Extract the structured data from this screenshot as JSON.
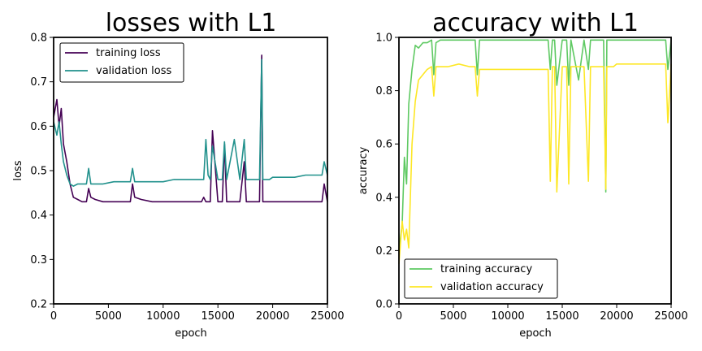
{
  "chart_data": [
    {
      "type": "line",
      "title": "losses with L1",
      "xlabel": "epoch",
      "ylabel": "loss",
      "xlim": [
        0,
        25000
      ],
      "ylim": [
        0.2,
        0.8
      ],
      "xticks": [
        0,
        5000,
        10000,
        15000,
        20000,
        25000
      ],
      "yticks": [
        0.2,
        0.3,
        0.4,
        0.5,
        0.6,
        0.7,
        0.8
      ],
      "ytick_decimals": 1,
      "grid": false,
      "legend_position": "upper-left",
      "series": [
        {
          "name": "training loss",
          "color": "#440154",
          "x": [
            0,
            300,
            500,
            700,
            900,
            1200,
            1500,
            1800,
            2200,
            2600,
            3000,
            3200,
            3400,
            3800,
            4500,
            5500,
            6500,
            7000,
            7200,
            7400,
            8000,
            9000,
            10000,
            11000,
            12000,
            13000,
            13500,
            13700,
            13900,
            14100,
            14300,
            14500,
            15000,
            15400,
            15600,
            15800,
            16500,
            17000,
            17400,
            17600,
            18000,
            18500,
            18800,
            19000,
            19100,
            19300,
            19700,
            20000,
            21000,
            22000,
            23000,
            24000,
            24500,
            24700,
            25000
          ],
          "y": [
            0.62,
            0.66,
            0.6,
            0.64,
            0.56,
            0.52,
            0.47,
            0.44,
            0.435,
            0.43,
            0.43,
            0.46,
            0.44,
            0.435,
            0.43,
            0.43,
            0.43,
            0.43,
            0.47,
            0.44,
            0.435,
            0.43,
            0.43,
            0.43,
            0.43,
            0.43,
            0.43,
            0.44,
            0.43,
            0.43,
            0.43,
            0.59,
            0.43,
            0.43,
            0.56,
            0.43,
            0.43,
            0.43,
            0.52,
            0.43,
            0.43,
            0.43,
            0.43,
            0.76,
            0.43,
            0.43,
            0.43,
            0.43,
            0.43,
            0.43,
            0.43,
            0.43,
            0.43,
            0.47,
            0.43
          ]
        },
        {
          "name": "validation loss",
          "color": "#21918c",
          "x": [
            0,
            300,
            500,
            700,
            900,
            1200,
            1500,
            1800,
            2200,
            2600,
            3000,
            3200,
            3400,
            3800,
            4500,
            5500,
            6500,
            7000,
            7200,
            7400,
            8000,
            9000,
            10000,
            11000,
            12000,
            13000,
            13500,
            13700,
            13900,
            14100,
            14300,
            14500,
            15000,
            15400,
            15600,
            15800,
            16500,
            17000,
            17400,
            17600,
            18000,
            18500,
            18800,
            19000,
            19100,
            19300,
            19700,
            20000,
            21000,
            22000,
            23000,
            24000,
            24500,
            24700,
            25000
          ],
          "y": [
            0.61,
            0.58,
            0.61,
            0.56,
            0.52,
            0.49,
            0.47,
            0.465,
            0.47,
            0.47,
            0.47,
            0.505,
            0.47,
            0.47,
            0.47,
            0.475,
            0.475,
            0.475,
            0.505,
            0.475,
            0.475,
            0.475,
            0.475,
            0.48,
            0.48,
            0.48,
            0.48,
            0.48,
            0.57,
            0.49,
            0.48,
            0.555,
            0.48,
            0.48,
            0.565,
            0.48,
            0.57,
            0.48,
            0.57,
            0.48,
            0.48,
            0.48,
            0.48,
            0.75,
            0.48,
            0.48,
            0.48,
            0.485,
            0.485,
            0.485,
            0.49,
            0.49,
            0.49,
            0.52,
            0.49
          ]
        }
      ]
    },
    {
      "type": "line",
      "title": "accuracy with L1",
      "xlabel": "epoch",
      "ylabel": "accuracy",
      "xlim": [
        0,
        25000
      ],
      "ylim": [
        0.0,
        1.0
      ],
      "xticks": [
        0,
        5000,
        10000,
        15000,
        20000,
        25000
      ],
      "yticks": [
        0.0,
        0.2,
        0.4,
        0.6,
        0.8,
        1.0
      ],
      "ytick_decimals": 1,
      "grid": false,
      "legend_position": "lower-left",
      "series": [
        {
          "name": "training accuracy",
          "color": "#5ec962",
          "x": [
            0,
            300,
            500,
            700,
            900,
            1200,
            1500,
            1800,
            2200,
            2600,
            3000,
            3200,
            3400,
            3800,
            4500,
            5500,
            6500,
            7000,
            7200,
            7400,
            8000,
            9000,
            10000,
            11000,
            12000,
            13000,
            13500,
            13700,
            13900,
            14100,
            14300,
            14500,
            15000,
            15400,
            15600,
            15800,
            16500,
            17000,
            17400,
            17600,
            18000,
            18500,
            18800,
            19000,
            19100,
            19300,
            19700,
            20000,
            21000,
            22000,
            23000,
            24000,
            24500,
            24700,
            25000
          ],
          "y": [
            0.2,
            0.3,
            0.55,
            0.45,
            0.75,
            0.88,
            0.97,
            0.96,
            0.98,
            0.98,
            0.99,
            0.86,
            0.98,
            0.99,
            0.99,
            0.99,
            0.99,
            0.99,
            0.86,
            0.99,
            0.99,
            0.99,
            0.99,
            0.99,
            0.99,
            0.99,
            0.99,
            0.99,
            0.88,
            0.99,
            0.99,
            0.82,
            0.99,
            0.99,
            0.82,
            0.99,
            0.84,
            0.99,
            0.88,
            0.99,
            0.99,
            0.99,
            0.99,
            0.42,
            0.99,
            0.99,
            0.99,
            0.99,
            0.99,
            0.99,
            0.99,
            0.99,
            0.99,
            0.88,
            0.99
          ]
        },
        {
          "name": "validation accuracy",
          "color": "#fde725",
          "x": [
            0,
            300,
            500,
            700,
            900,
            1200,
            1500,
            1800,
            2200,
            2600,
            3000,
            3200,
            3400,
            3800,
            4500,
            5500,
            6500,
            7000,
            7200,
            7400,
            8000,
            9000,
            10000,
            11000,
            12000,
            13000,
            13500,
            13700,
            13900,
            14100,
            14300,
            14500,
            15000,
            15400,
            15600,
            15800,
            16500,
            17000,
            17400,
            17600,
            18000,
            18500,
            18800,
            19000,
            19100,
            19300,
            19700,
            20000,
            21000,
            22000,
            23000,
            24000,
            24500,
            24700,
            25000
          ],
          "y": [
            0.15,
            0.31,
            0.24,
            0.28,
            0.21,
            0.6,
            0.76,
            0.84,
            0.86,
            0.88,
            0.89,
            0.78,
            0.89,
            0.89,
            0.89,
            0.9,
            0.89,
            0.89,
            0.78,
            0.88,
            0.88,
            0.88,
            0.88,
            0.88,
            0.88,
            0.88,
            0.88,
            0.88,
            0.46,
            0.89,
            0.89,
            0.42,
            0.89,
            0.89,
            0.45,
            0.89,
            0.89,
            0.89,
            0.46,
            0.89,
            0.89,
            0.89,
            0.89,
            0.43,
            0.89,
            0.89,
            0.89,
            0.9,
            0.9,
            0.9,
            0.9,
            0.9,
            0.9,
            0.68,
            0.9
          ]
        }
      ]
    }
  ]
}
